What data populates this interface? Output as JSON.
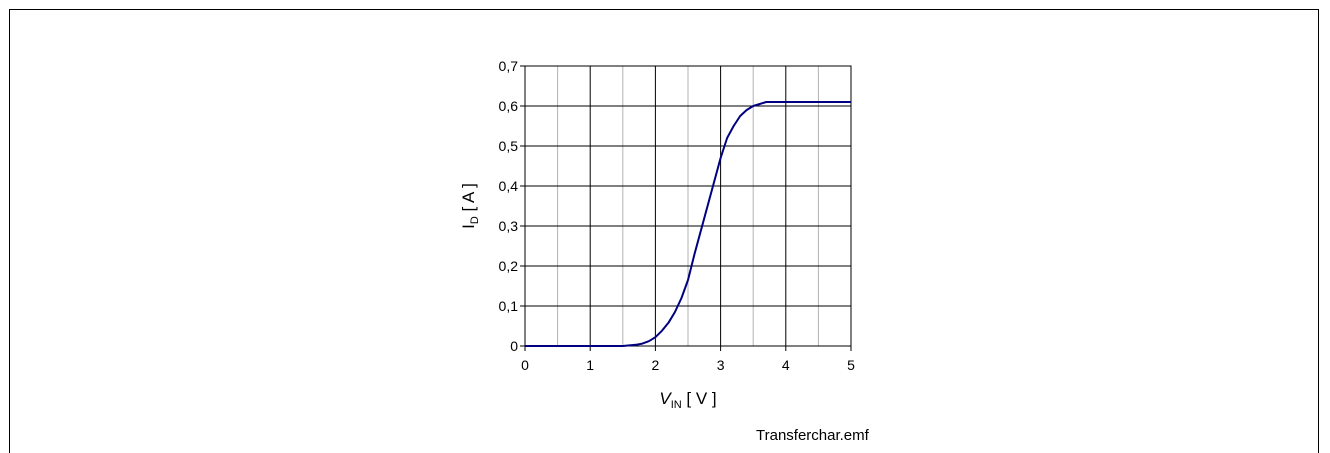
{
  "file_label": "Transferchar.emf",
  "colors": {
    "curve": "#000080",
    "major_grid": "#000000",
    "minor_grid": "#b3b3b3"
  },
  "chart_data": {
    "type": "line",
    "xlabel": {
      "main": "V",
      "sub": "IN",
      "unit": " [ V ]"
    },
    "ylabel": {
      "main": "I",
      "sub": "D",
      "unit": " [ A ]"
    },
    "xlim": [
      0,
      5
    ],
    "ylim": [
      0,
      0.7
    ],
    "x_ticks": [
      0,
      1,
      2,
      3,
      4,
      5
    ],
    "x_tick_labels": [
      "0",
      "1",
      "2",
      "3",
      "4",
      "5"
    ],
    "y_ticks": [
      0,
      0.1,
      0.2,
      0.3,
      0.4,
      0.5,
      0.6,
      0.7
    ],
    "y_tick_labels": [
      "0",
      "0,1",
      "0,2",
      "0,3",
      "0,4",
      "0,5",
      "0,6",
      "0,7"
    ],
    "grid": true,
    "legend": "none",
    "series": [
      {
        "x": [
          0,
          1,
          1.5,
          1.7,
          1.8,
          1.9,
          2.0,
          2.1,
          2.2,
          2.3,
          2.4,
          2.5,
          2.6,
          2.7,
          2.8,
          2.9,
          3.0,
          3.1,
          3.2,
          3.3,
          3.4,
          3.5,
          3.6,
          3.7,
          3.8,
          4.0,
          4.5,
          5.0
        ],
        "y": [
          0,
          0,
          0,
          0.003,
          0.006,
          0.012,
          0.022,
          0.038,
          0.058,
          0.085,
          0.12,
          0.165,
          0.23,
          0.29,
          0.35,
          0.41,
          0.47,
          0.52,
          0.55,
          0.575,
          0.59,
          0.6,
          0.605,
          0.61,
          0.61,
          0.61,
          0.61,
          0.61
        ]
      }
    ]
  }
}
